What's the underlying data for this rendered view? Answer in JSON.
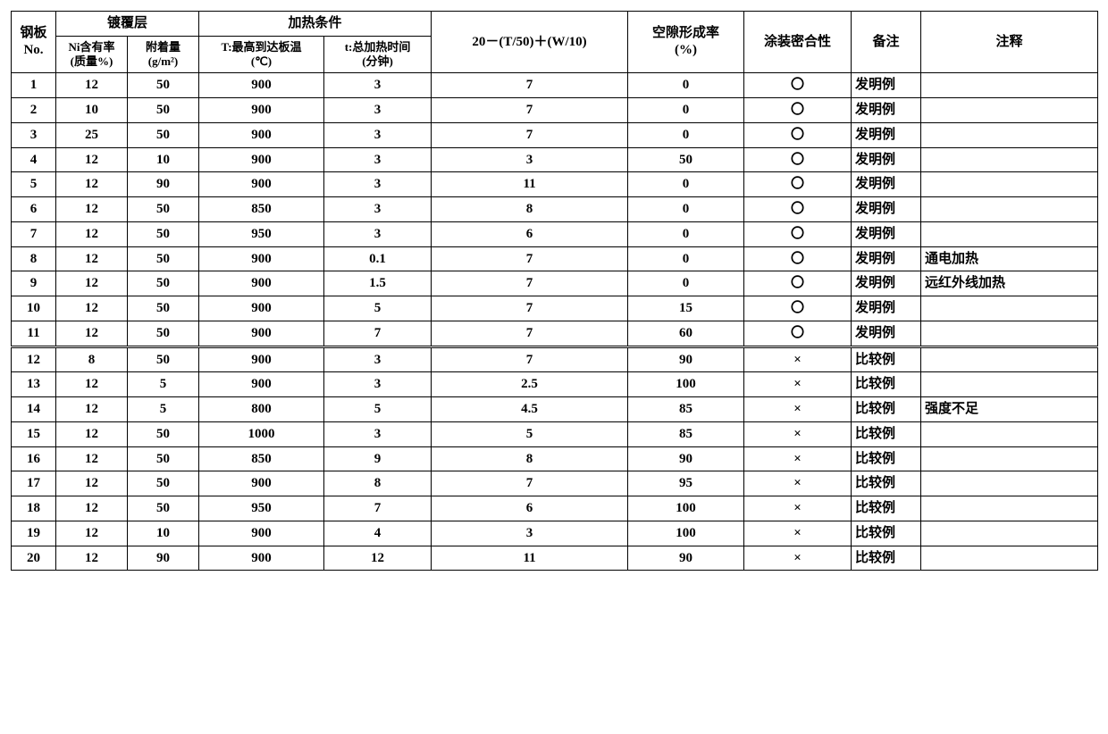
{
  "headers": {
    "plate_no": "钢板\nNo.",
    "coating_group": "镀覆层",
    "ni_content": "Ni含有率\n(质量%)",
    "adhesion": "附着量\n(g/m²)",
    "heating_group": "加热条件",
    "temp": "T:最高到达板温\n(℃)",
    "time": "t:总加热时间\n(分钟)",
    "formula": "20－(T/50)＋(W/10)",
    "void_rate": "空隙形成率\n(%)",
    "paint_adh": "涂装密合性",
    "remark": "备注",
    "note": "注释"
  },
  "symbols": {
    "ok": "〇",
    "ng": "×"
  },
  "labels": {
    "inv": "发明例",
    "cmp": "比较例"
  },
  "rows": [
    {
      "no": "1",
      "ni": "12",
      "adh": "50",
      "t": "900",
      "time": "3",
      "f": "7",
      "void": "0",
      "paint": "ok",
      "rem": "inv",
      "note": ""
    },
    {
      "no": "2",
      "ni": "10",
      "adh": "50",
      "t": "900",
      "time": "3",
      "f": "7",
      "void": "0",
      "paint": "ok",
      "rem": "inv",
      "note": ""
    },
    {
      "no": "3",
      "ni": "25",
      "adh": "50",
      "t": "900",
      "time": "3",
      "f": "7",
      "void": "0",
      "paint": "ok",
      "rem": "inv",
      "note": ""
    },
    {
      "no": "4",
      "ni": "12",
      "adh": "10",
      "t": "900",
      "time": "3",
      "f": "3",
      "void": "50",
      "paint": "ok",
      "rem": "inv",
      "note": ""
    },
    {
      "no": "5",
      "ni": "12",
      "adh": "90",
      "t": "900",
      "time": "3",
      "f": "11",
      "void": "0",
      "paint": "ok",
      "rem": "inv",
      "note": ""
    },
    {
      "no": "6",
      "ni": "12",
      "adh": "50",
      "t": "850",
      "time": "3",
      "f": "8",
      "void": "0",
      "paint": "ok",
      "rem": "inv",
      "note": ""
    },
    {
      "no": "7",
      "ni": "12",
      "adh": "50",
      "t": "950",
      "time": "3",
      "f": "6",
      "void": "0",
      "paint": "ok",
      "rem": "inv",
      "note": ""
    },
    {
      "no": "8",
      "ni": "12",
      "adh": "50",
      "t": "900",
      "time": "0.1",
      "f": "7",
      "void": "0",
      "paint": "ok",
      "rem": "inv",
      "note": "通电加热"
    },
    {
      "no": "9",
      "ni": "12",
      "adh": "50",
      "t": "900",
      "time": "1.5",
      "f": "7",
      "void": "0",
      "paint": "ok",
      "rem": "inv",
      "note": "远红外线加热"
    },
    {
      "no": "10",
      "ni": "12",
      "adh": "50",
      "t": "900",
      "time": "5",
      "f": "7",
      "void": "15",
      "paint": "ok",
      "rem": "inv",
      "note": ""
    },
    {
      "no": "11",
      "ni": "12",
      "adh": "50",
      "t": "900",
      "time": "7",
      "f": "7",
      "void": "60",
      "paint": "ok",
      "rem": "inv",
      "note": ""
    },
    {
      "no": "12",
      "ni": "8",
      "adh": "50",
      "t": "900",
      "time": "3",
      "f": "7",
      "void": "90",
      "paint": "ng",
      "rem": "cmp",
      "note": "",
      "divider": true
    },
    {
      "no": "13",
      "ni": "12",
      "adh": "5",
      "t": "900",
      "time": "3",
      "f": "2.5",
      "void": "100",
      "paint": "ng",
      "rem": "cmp",
      "note": ""
    },
    {
      "no": "14",
      "ni": "12",
      "adh": "5",
      "t": "800",
      "time": "5",
      "f": "4.5",
      "void": "85",
      "paint": "ng",
      "rem": "cmp",
      "note": "强度不足"
    },
    {
      "no": "15",
      "ni": "12",
      "adh": "50",
      "t": "1000",
      "time": "3",
      "f": "5",
      "void": "85",
      "paint": "ng",
      "rem": "cmp",
      "note": ""
    },
    {
      "no": "16",
      "ni": "12",
      "adh": "50",
      "t": "850",
      "time": "9",
      "f": "8",
      "void": "90",
      "paint": "ng",
      "rem": "cmp",
      "note": ""
    },
    {
      "no": "17",
      "ni": "12",
      "adh": "50",
      "t": "900",
      "time": "8",
      "f": "7",
      "void": "95",
      "paint": "ng",
      "rem": "cmp",
      "note": ""
    },
    {
      "no": "18",
      "ni": "12",
      "adh": "50",
      "t": "950",
      "time": "7",
      "f": "6",
      "void": "100",
      "paint": "ng",
      "rem": "cmp",
      "note": ""
    },
    {
      "no": "19",
      "ni": "12",
      "adh": "10",
      "t": "900",
      "time": "4",
      "f": "3",
      "void": "100",
      "paint": "ng",
      "rem": "cmp",
      "note": ""
    },
    {
      "no": "20",
      "ni": "12",
      "adh": "90",
      "t": "900",
      "time": "12",
      "f": "11",
      "void": "90",
      "paint": "ng",
      "rem": "cmp",
      "note": ""
    }
  ]
}
